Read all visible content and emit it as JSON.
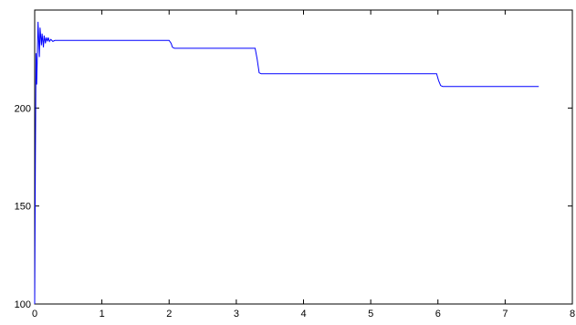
{
  "chart_data": {
    "type": "line",
    "title": "",
    "xlabel": "",
    "ylabel": "",
    "xlim": [
      0,
      8
    ],
    "ylim": [
      100,
      250
    ],
    "x_ticks": [
      0,
      1,
      2,
      3,
      4,
      5,
      6,
      7,
      8
    ],
    "y_ticks": [
      100,
      150,
      200
    ],
    "x_tick_labels": [
      "0",
      "1",
      "2",
      "3",
      "4",
      "5",
      "6",
      "7",
      "8"
    ],
    "y_tick_labels": [
      "100",
      "150",
      "200"
    ],
    "grid": false,
    "series": [
      {
        "color": "#0000ff",
        "x": [
          0.0,
          0.01,
          0.02,
          0.03,
          0.05,
          0.07,
          0.08,
          0.1,
          0.11,
          0.13,
          0.14,
          0.16,
          0.17,
          0.19,
          0.2,
          0.22,
          0.24,
          0.27,
          0.3,
          0.5,
          1.0,
          1.5,
          2.0,
          2.03,
          2.05,
          2.08,
          2.1,
          2.5,
          3.0,
          3.28,
          3.31,
          3.34,
          3.37,
          3.4,
          3.6,
          3.8,
          4.0,
          4.2,
          4.4,
          4.6,
          4.8,
          5.0,
          5.2,
          5.4,
          5.6,
          5.8,
          5.98,
          6.01,
          6.04,
          6.07,
          6.1,
          6.5,
          7.0,
          7.5
        ],
        "y": [
          100,
          172,
          228,
          212,
          244,
          226,
          241,
          232,
          238,
          231,
          237,
          233,
          236,
          234,
          236,
          234,
          235,
          234,
          234.5,
          234.5,
          234.5,
          234.5,
          234.5,
          233,
          231,
          230.5,
          230.5,
          230.5,
          230.5,
          230.5,
          225,
          218,
          217.5,
          217.5,
          217.5,
          217.5,
          217.5,
          217.5,
          217.5,
          217.5,
          217.5,
          217.5,
          217.5,
          217.5,
          217.5,
          217.5,
          217.5,
          214,
          211.5,
          211,
          211,
          211,
          211,
          211
        ]
      }
    ]
  }
}
